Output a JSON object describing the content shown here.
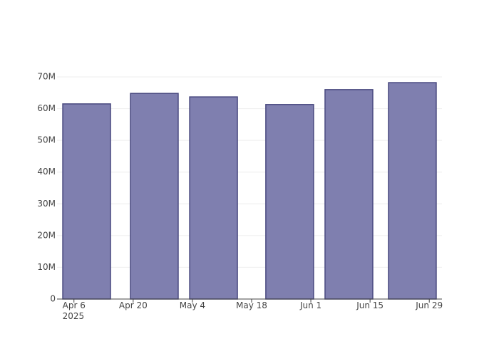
{
  "chart_data": {
    "type": "bar",
    "x": [
      "2025-04-09",
      "2025-04-25",
      "2025-05-09",
      "2025-05-27",
      "2025-06-10",
      "2025-06-25"
    ],
    "values": [
      61500000,
      64800000,
      63700000,
      61300000,
      66000000,
      68200000
    ],
    "color": "#7f7faf",
    "edge_color": "#4a4a80",
    "xlim": [
      "2025-04-02",
      "2025-07-02"
    ],
    "xticks": [
      {
        "value": "2025-04-06",
        "label": "Apr 6\n2025"
      },
      {
        "value": "2025-04-20",
        "label": "Apr 20"
      },
      {
        "value": "2025-05-04",
        "label": "May 4"
      },
      {
        "value": "2025-05-18",
        "label": "May 18"
      },
      {
        "value": "2025-06-01",
        "label": "Jun 1"
      },
      {
        "value": "2025-06-15",
        "label": "Jun 15"
      },
      {
        "value": "2025-06-29",
        "label": "Jun 29"
      }
    ],
    "ylim": [
      0,
      71800000
    ],
    "yticks": [
      0,
      {
        "value": 10000000,
        "label": "10M"
      },
      {
        "value": 20000000,
        "label": "20M"
      },
      {
        "value": 30000000,
        "label": "30M"
      },
      {
        "value": 40000000,
        "label": "40M"
      },
      {
        "value": 50000000,
        "label": "50M"
      },
      {
        "value": 60000000,
        "label": "60M"
      },
      {
        "value": 70000000,
        "label": "70M"
      }
    ],
    "grid": true
  }
}
